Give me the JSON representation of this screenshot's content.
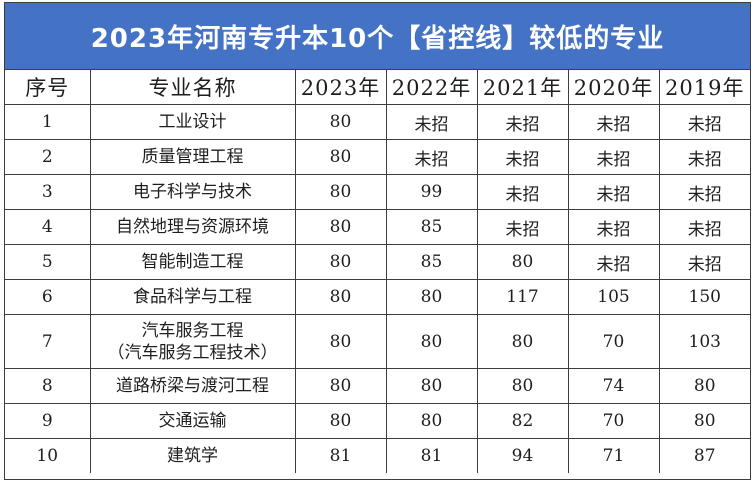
{
  "title": "2023年河南专升本10个【省控线】较低的专业",
  "headers": [
    "序号",
    "专业名称",
    "2023年",
    "2022年",
    "2021年",
    "2020年",
    "2019年"
  ],
  "rows": [
    {
      "no": "1",
      "major": [
        "工业设计"
      ],
      "y2023": "80",
      "y2022": "未招",
      "y2021": "未招",
      "y2020": "未招",
      "y2019": "未招"
    },
    {
      "no": "2",
      "major": [
        "质量管理工程"
      ],
      "y2023": "80",
      "y2022": "未招",
      "y2021": "未招",
      "y2020": "未招",
      "y2019": "未招"
    },
    {
      "no": "3",
      "major": [
        "电子科学与技术"
      ],
      "y2023": "80",
      "y2022": "99",
      "y2021": "未招",
      "y2020": "未招",
      "y2019": "未招"
    },
    {
      "no": "4",
      "major": [
        "自然地理与资源环境"
      ],
      "y2023": "80",
      "y2022": "85",
      "y2021": "未招",
      "y2020": "未招",
      "y2019": "未招"
    },
    {
      "no": "5",
      "major": [
        "智能制造工程"
      ],
      "y2023": "80",
      "y2022": "85",
      "y2021": "80",
      "y2020": "未招",
      "y2019": "未招"
    },
    {
      "no": "6",
      "major": [
        "食品科学与工程"
      ],
      "y2023": "80",
      "y2022": "80",
      "y2021": "117",
      "y2020": "105",
      "y2019": "150"
    },
    {
      "no": "7",
      "major": [
        "汽车服务工程",
        "（汽车服务工程技术）"
      ],
      "y2023": "80",
      "y2022": "80",
      "y2021": "80",
      "y2020": "70",
      "y2019": "103"
    },
    {
      "no": "8",
      "major": [
        "道路桥梁与渡河工程"
      ],
      "y2023": "80",
      "y2022": "80",
      "y2021": "80",
      "y2020": "74",
      "y2019": "80"
    },
    {
      "no": "9",
      "major": [
        "交通运输"
      ],
      "y2023": "80",
      "y2022": "80",
      "y2021": "82",
      "y2020": "70",
      "y2019": "80"
    },
    {
      "no": "10",
      "major": [
        "建筑学"
      ],
      "y2023": "81",
      "y2022": "81",
      "y2021": "94",
      "y2020": "71",
      "y2019": "87"
    }
  ]
}
